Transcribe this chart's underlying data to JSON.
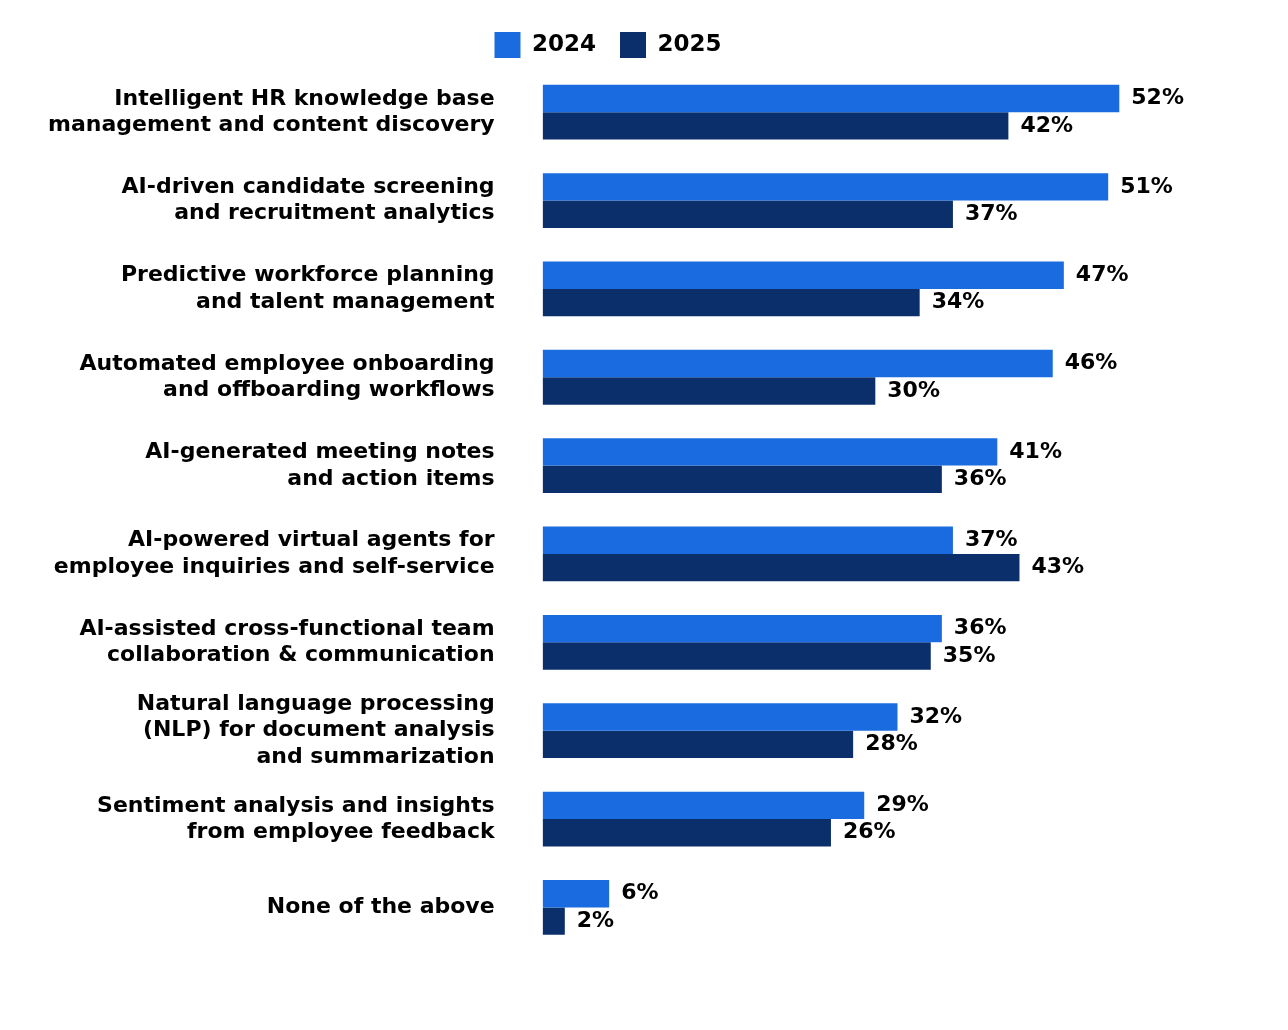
{
  "chart_data": {
    "type": "bar",
    "orientation": "horizontal",
    "legend": "top",
    "categories": [
      "Intelligent HR knowledge base management and content discovery",
      "AI-driven candidate screening and recruitment analytics",
      "Predictive workforce planning and talent management",
      "Automated employee onboarding and offboarding workflows",
      "AI-generated meeting notes and action items",
      "AI-powered virtual agents for employee inquiries and self-service",
      "AI-assisted cross-functional team collaboration & communication",
      "Natural language processing (NLP) for document analysis and summarization",
      "Sentiment analysis and insights from employee feedback",
      "None of the above"
    ],
    "series": [
      {
        "name": "2024",
        "color": "#1a6be0",
        "values": [
          52,
          51,
          47,
          46,
          41,
          37,
          36,
          32,
          29,
          6
        ],
        "value_labels": [
          "52%",
          "51%",
          "47%",
          "46%",
          "41%",
          "37%",
          "36%",
          "32%",
          "29%",
          "6%"
        ]
      },
      {
        "name": "2025",
        "color": "#0a2f6b",
        "values": [
          42,
          37,
          34,
          30,
          36,
          43,
          35,
          28,
          26,
          2
        ],
        "value_labels": [
          "42%",
          "37%",
          "34%",
          "30%",
          "36%",
          "43%",
          "35%",
          "28%",
          "26%",
          "2%"
        ]
      }
    ]
  }
}
